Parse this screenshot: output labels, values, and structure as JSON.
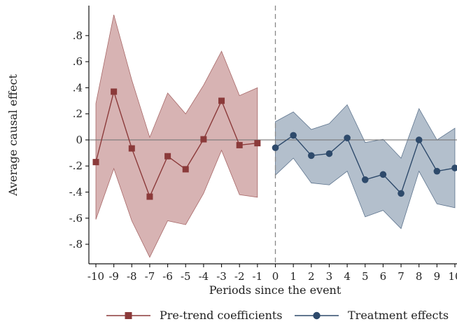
{
  "chart_data": {
    "type": "line",
    "title": "",
    "xlabel": "Periods since the event",
    "ylabel": "Average causal effect",
    "xlim": [
      -10,
      10
    ],
    "ylim": [
      -0.95,
      1.03
    ],
    "x_ticks": [
      "-10",
      "-9",
      "-8",
      "-7",
      "-6",
      "-5",
      "-4",
      "-3",
      "-2",
      "-1",
      "0",
      "1",
      "2",
      "3",
      "4",
      "5",
      "6",
      "7",
      "8",
      "9",
      "10"
    ],
    "y_ticks": [
      {
        "value": 0.8,
        "label": ".8"
      },
      {
        "value": 0.6,
        "label": ".6"
      },
      {
        "value": 0.4,
        "label": ".4"
      },
      {
        "value": 0.2,
        "label": ".2"
      },
      {
        "value": 0,
        "label": "0"
      },
      {
        "value": -0.2,
        "label": "-.2"
      },
      {
        "value": -0.4,
        "label": "-.4"
      },
      {
        "value": -0.6,
        "label": "-.6"
      },
      {
        "value": -0.8,
        "label": "-.8"
      }
    ],
    "reference_lines": {
      "y": 0,
      "x_dashed": 0
    },
    "legend_position": "bottom",
    "series": [
      {
        "name": "Pre-trend coefficients",
        "marker": "square",
        "color": "#8b3a3a",
        "band_color": "#c9999a",
        "x": [
          -10,
          -9,
          -8,
          -7,
          -6,
          -5,
          -4,
          -3,
          -2,
          -1
        ],
        "y": [
          -0.17,
          0.37,
          -0.065,
          -0.435,
          -0.125,
          -0.225,
          0.005,
          0.3,
          -0.04,
          -0.025
        ],
        "ci_lower": [
          -0.61,
          -0.22,
          -0.62,
          -0.9,
          -0.62,
          -0.65,
          -0.41,
          -0.08,
          -0.42,
          -0.44
        ],
        "ci_upper": [
          0.28,
          0.96,
          0.46,
          0.02,
          0.36,
          0.2,
          0.42,
          0.68,
          0.34,
          0.4
        ]
      },
      {
        "name": "Treatment effects",
        "marker": "circle",
        "color": "#2e4a6b",
        "band_color": "#9aaabb",
        "x": [
          0,
          1,
          2,
          3,
          4,
          5,
          6,
          7,
          8,
          9,
          10
        ],
        "y": [
          -0.06,
          0.035,
          -0.12,
          -0.105,
          0.015,
          -0.305,
          -0.265,
          -0.41,
          0.0,
          -0.24,
          -0.215
        ],
        "ci_lower": [
          -0.27,
          -0.14,
          -0.33,
          -0.345,
          -0.24,
          -0.59,
          -0.54,
          -0.68,
          -0.24,
          -0.49,
          -0.52
        ],
        "ci_upper": [
          0.14,
          0.215,
          0.08,
          0.125,
          0.27,
          -0.02,
          0.005,
          -0.14,
          0.24,
          0.0,
          0.09
        ]
      }
    ]
  }
}
